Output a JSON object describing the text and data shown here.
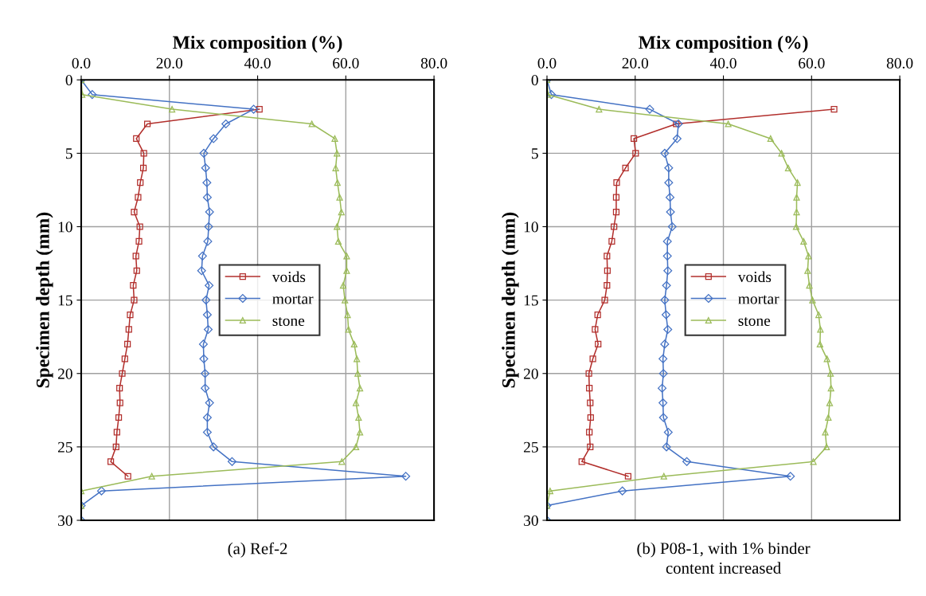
{
  "chart_data": [
    {
      "type": "line",
      "orientation": "horizontal",
      "xlabel": "Mix composition (%)",
      "ylabel": "Specimen depth (mm)",
      "annotations": [
        "(a) Ref-2"
      ],
      "x": [
        0,
        1,
        2,
        3,
        4,
        5,
        6,
        7,
        8,
        9,
        10,
        11,
        12,
        13,
        14,
        15,
        16,
        17,
        18,
        19,
        20,
        21,
        22,
        23,
        24,
        25,
        26,
        27,
        28,
        29,
        30
      ],
      "series": [
        {
          "name": "voids",
          "color": "#b22f2c",
          "marker": "square",
          "values": [
            null,
            null,
            40.4,
            15.0,
            12.5,
            14.2,
            14.1,
            13.4,
            12.9,
            12.0,
            13.3,
            13.1,
            12.4,
            12.6,
            11.8,
            12.0,
            11.1,
            10.8,
            10.5,
            9.9,
            9.3,
            8.7,
            8.8,
            8.5,
            8.1,
            7.9,
            6.7,
            10.6,
            null,
            null,
            null
          ]
        },
        {
          "name": "mortar",
          "color": "#4472c4",
          "marker": "diamond",
          "values": [
            0,
            2.5,
            39.1,
            32.8,
            30.0,
            27.8,
            28.2,
            28.5,
            28.6,
            29.1,
            28.9,
            28.7,
            27.5,
            27.3,
            29.0,
            28.3,
            28.6,
            28.8,
            27.7,
            27.8,
            28.1,
            28.1,
            29.1,
            28.6,
            28.6,
            30.0,
            34.2,
            73.6,
            4.6,
            0,
            0
          ]
        },
        {
          "name": "stone",
          "color": "#9bbb59",
          "marker": "triangle",
          "values": [
            0,
            0.2,
            20.6,
            52.3,
            57.5,
            58.0,
            57.7,
            58.1,
            58.6,
            59.0,
            58.0,
            58.3,
            60.2,
            60.2,
            59.4,
            59.8,
            60.4,
            60.6,
            61.9,
            62.5,
            62.7,
            63.2,
            62.3,
            62.9,
            63.2,
            62.3,
            59.1,
            16.0,
            0,
            0,
            0
          ]
        }
      ],
      "xlim": [
        0,
        80
      ],
      "xticks": [
        {
          "value": 0,
          "label": "0.0"
        },
        {
          "value": 20,
          "label": "20.0"
        },
        {
          "value": 40,
          "label": "40.0"
        },
        {
          "value": 60,
          "label": "60.0"
        },
        {
          "value": 80,
          "label": "80.0"
        }
      ],
      "ylim": [
        30,
        0
      ],
      "yticks": [
        0,
        5,
        10,
        15,
        20,
        25,
        30
      ],
      "grid": true,
      "legend": "center right"
    },
    {
      "type": "line",
      "orientation": "horizontal",
      "xlabel": "Mix composition (%)",
      "ylabel": "Specimen depth (mm)",
      "annotations": [
        "(b) P08-1, with 1% binder\ncontent increased"
      ],
      "x": [
        0,
        1,
        2,
        3,
        4,
        5,
        6,
        7,
        8,
        9,
        10,
        11,
        12,
        13,
        14,
        15,
        16,
        17,
        18,
        19,
        20,
        21,
        22,
        23,
        24,
        25,
        26,
        27,
        28,
        29,
        30
      ],
      "series": [
        {
          "name": "voids",
          "color": "#b22f2c",
          "marker": "square",
          "values": [
            null,
            null,
            65.1,
            29.3,
            19.7,
            20.1,
            17.8,
            15.8,
            15.7,
            15.7,
            15.2,
            14.7,
            13.6,
            13.7,
            13.6,
            13.1,
            11.5,
            10.9,
            11.6,
            10.4,
            9.5,
            9.6,
            9.8,
            9.9,
            9.6,
            9.8,
            7.9,
            18.4,
            null,
            null,
            null
          ]
        },
        {
          "name": "mortar",
          "color": "#4472c4",
          "marker": "diamond",
          "values": [
            0,
            1.0,
            23.3,
            29.8,
            29.5,
            26.7,
            27.6,
            27.6,
            27.9,
            28.0,
            28.4,
            27.3,
            27.3,
            27.4,
            27.1,
            26.7,
            27.0,
            27.4,
            26.7,
            26.3,
            26.4,
            26.1,
            26.3,
            26.4,
            27.5,
            27.1,
            31.7,
            55.2,
            17.1,
            0,
            0
          ]
        },
        {
          "name": "stone",
          "color": "#9bbb59",
          "marker": "triangle",
          "values": [
            0,
            0.2,
            11.8,
            41.1,
            50.7,
            53.2,
            54.7,
            56.8,
            56.6,
            56.6,
            56.5,
            58.2,
            59.3,
            59.1,
            59.5,
            60.2,
            61.6,
            62.0,
            61.9,
            63.5,
            64.3,
            64.4,
            64.1,
            63.8,
            63.1,
            63.4,
            60.4,
            26.5,
            0.7,
            0,
            0
          ]
        }
      ],
      "xlim": [
        0,
        80
      ],
      "xticks": [
        {
          "value": 0,
          "label": "0.0"
        },
        {
          "value": 20,
          "label": "20.0"
        },
        {
          "value": 40,
          "label": "40.0"
        },
        {
          "value": 60,
          "label": "60.0"
        },
        {
          "value": 80,
          "label": "80.0"
        }
      ],
      "ylim": [
        30,
        0
      ],
      "yticks": [
        0,
        5,
        10,
        15,
        20,
        25,
        30
      ],
      "grid": true,
      "legend": "center right"
    }
  ]
}
